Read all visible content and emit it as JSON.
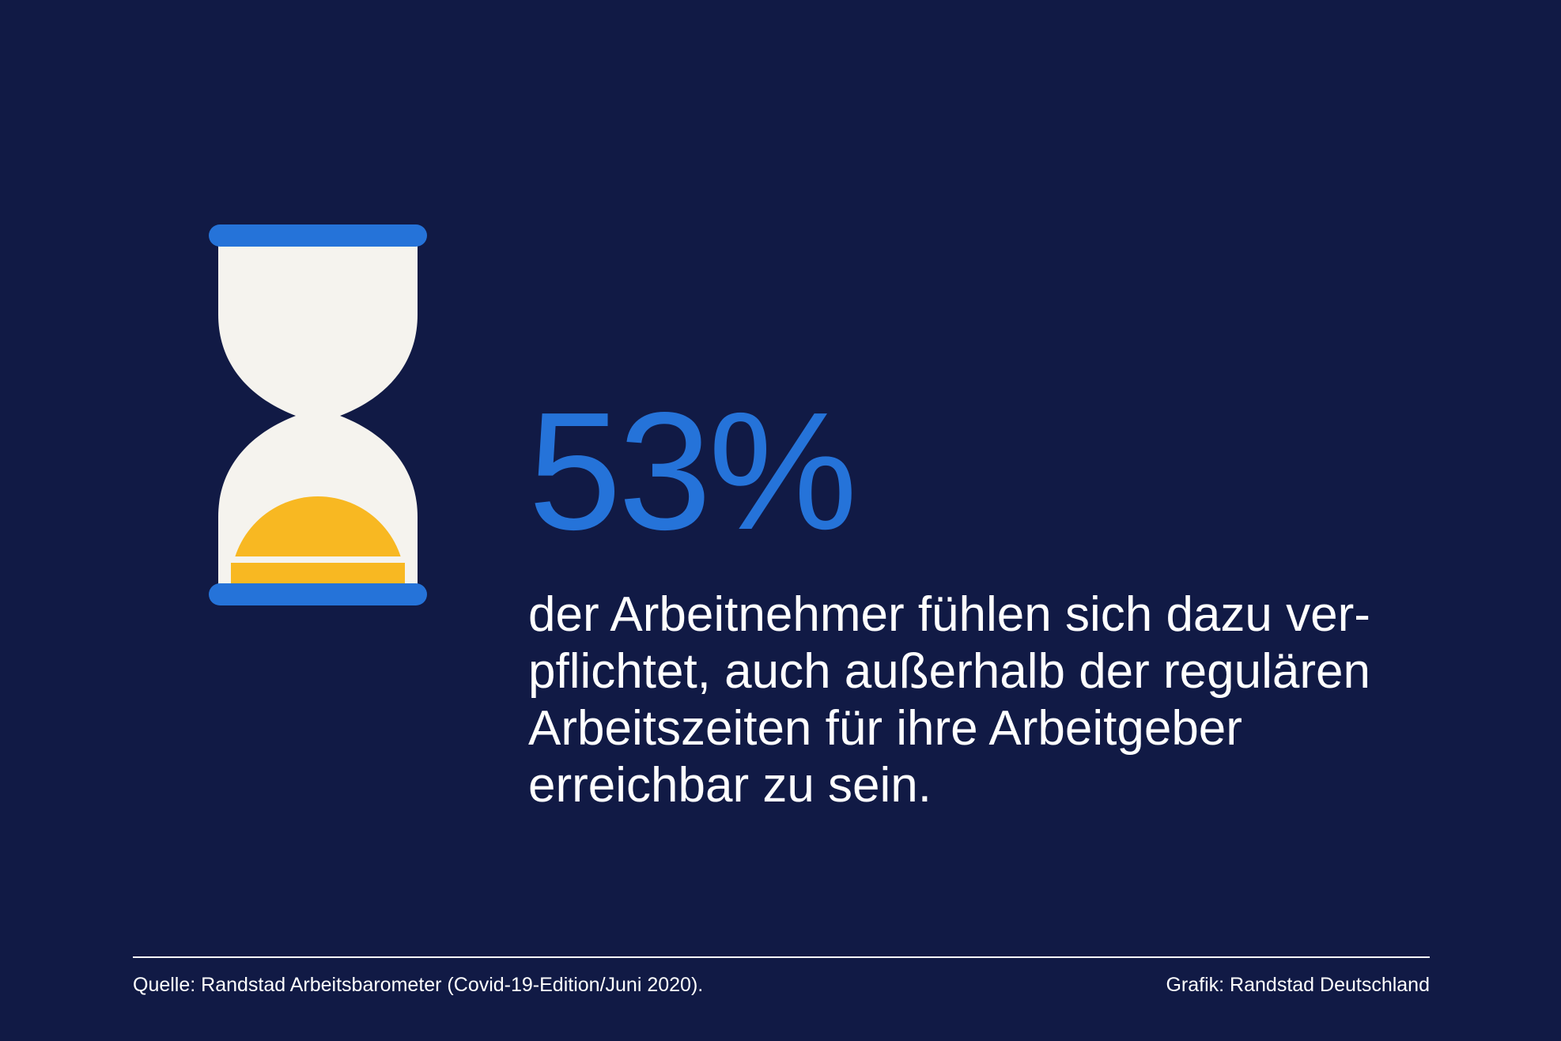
{
  "colors": {
    "background": "#111a45",
    "accent_blue": "#2573d9",
    "glass": "#f5f3ee",
    "sand": "#f8b822",
    "text": "#ffffff"
  },
  "icon": {
    "name": "hourglass-icon"
  },
  "statistic": {
    "value": "53%",
    "lines": [
      "der Arbeitnehmer fühlen sich dazu ver-",
      "pflichtet, auch außerhalb der regulären",
      "Arbeitszeiten für ihre Arbeitgeber",
      "erreichbar zu sein."
    ]
  },
  "footer": {
    "source": "Quelle: Randstad Arbeitsbarometer (Covid-19-Edition/Juni 2020).",
    "credit": "Grafik: Randstad Deutschland"
  }
}
